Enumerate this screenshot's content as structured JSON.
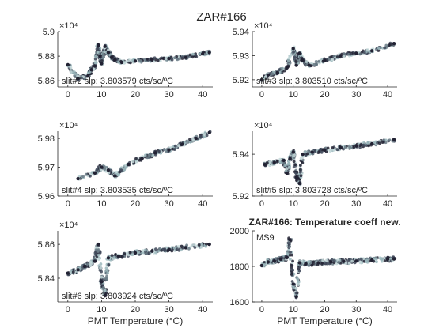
{
  "figure": {
    "title": "ZAR#166"
  },
  "colors": {
    "axis": "#262626",
    "points": [
      "#222233",
      "#3e4658",
      "#6a7b86",
      "#9cb8bd",
      "#c5d9da"
    ]
  },
  "chart_data": [
    {
      "type": "scatter",
      "title": "",
      "xlabel": "",
      "ylabel": "",
      "xlim": [
        -3,
        43
      ],
      "ylim": [
        5.855,
        5.9
      ],
      "xticks": [
        0,
        10,
        20,
        30,
        40
      ],
      "xticklabels": [
        "0",
        "10",
        "20",
        "30",
        "40"
      ],
      "yticks": [
        5.86,
        5.88,
        5.9
      ],
      "yticklabels": [
        "5.86",
        "5.88",
        "5.9"
      ],
      "exponent_label": "×10⁴",
      "annotation": "slit#2 slp: 3.803579 cts/sc/ºC",
      "approx_points": [
        [
          0,
          5.873
        ],
        [
          3,
          5.862
        ],
        [
          6,
          5.864
        ],
        [
          7,
          5.869
        ],
        [
          8,
          5.872
        ],
        [
          9,
          5.889
        ],
        [
          9.5,
          5.88
        ],
        [
          10,
          5.874
        ],
        [
          11,
          5.888
        ],
        [
          12,
          5.883
        ],
        [
          13,
          5.879
        ],
        [
          14,
          5.877
        ],
        [
          16,
          5.875
        ],
        [
          20,
          5.876
        ],
        [
          25,
          5.877
        ],
        [
          30,
          5.878
        ],
        [
          35,
          5.879
        ],
        [
          40,
          5.882
        ],
        [
          42,
          5.883
        ]
      ]
    },
    {
      "type": "scatter",
      "title": "",
      "xlabel": "",
      "ylabel": "",
      "xlim": [
        -3,
        43
      ],
      "ylim": [
        5.917,
        5.94
      ],
      "xticks": [
        0,
        10,
        20,
        30,
        40
      ],
      "xticklabels": [
        "0",
        "10",
        "20",
        "30",
        "40"
      ],
      "yticks": [
        5.92,
        5.93,
        5.94
      ],
      "yticklabels": [
        "5.92",
        "5.93",
        "5.94"
      ],
      "exponent_label": "×10⁴",
      "annotation": "slit#3 slp: 3.803510 cts/sc/ºC",
      "approx_points": [
        [
          0,
          5.92
        ],
        [
          2,
          5.922
        ],
        [
          5,
          5.923
        ],
        [
          8,
          5.925
        ],
        [
          10,
          5.933
        ],
        [
          11,
          5.926
        ],
        [
          12,
          5.931
        ],
        [
          13,
          5.928
        ],
        [
          15,
          5.926
        ],
        [
          20,
          5.928
        ],
        [
          25,
          5.93
        ],
        [
          30,
          5.931
        ],
        [
          35,
          5.932
        ],
        [
          42,
          5.935
        ]
      ]
    },
    {
      "type": "scatter",
      "title": "",
      "xlabel": "",
      "ylabel": "",
      "xlim": [
        -3,
        43
      ],
      "ylim": [
        5.96,
        5.9825
      ],
      "xticks": [
        0,
        10,
        20,
        30,
        40
      ],
      "xticklabels": [
        "0",
        "10",
        "20",
        "30",
        "40"
      ],
      "yticks": [
        5.96,
        5.97,
        5.98
      ],
      "yticklabels": [
        "5.96",
        "5.97",
        "5.98"
      ],
      "exponent_label": "×10⁴",
      "annotation": "slit#4 slp: 3.803535 cts/sc/ºC",
      "approx_points": [
        [
          3,
          5.966
        ],
        [
          8,
          5.968
        ],
        [
          10,
          5.97
        ],
        [
          12,
          5.969
        ],
        [
          14,
          5.967
        ],
        [
          18,
          5.971
        ],
        [
          22,
          5.973
        ],
        [
          26,
          5.975
        ],
        [
          30,
          5.976
        ],
        [
          34,
          5.978
        ],
        [
          38,
          5.98
        ],
        [
          42,
          5.982
        ]
      ]
    },
    {
      "type": "scatter",
      "title": "",
      "xlabel": "",
      "ylabel": "",
      "xlim": [
        -3,
        43
      ],
      "ylim": [
        5.92,
        5.951
      ],
      "xticks": [
        0,
        10,
        20,
        30,
        40
      ],
      "xticklabels": [
        "0",
        "10",
        "20",
        "30",
        "40"
      ],
      "yticks": [
        5.92,
        5.94
      ],
      "yticklabels": [
        "5.92",
        "5.94"
      ],
      "exponent_label": "×10⁴",
      "annotation": "slit#5 slp: 3.803728 cts/sc/ºC",
      "approx_points": [
        [
          1,
          5.935
        ],
        [
          4,
          5.936
        ],
        [
          7,
          5.937
        ],
        [
          8,
          5.931
        ],
        [
          9,
          5.938
        ],
        [
          10,
          5.941
        ],
        [
          11,
          5.929
        ],
        [
          12,
          5.926
        ],
        [
          13,
          5.94
        ],
        [
          16,
          5.941
        ],
        [
          20,
          5.942
        ],
        [
          25,
          5.943
        ],
        [
          30,
          5.944
        ],
        [
          35,
          5.945
        ],
        [
          42,
          5.947
        ]
      ]
    },
    {
      "type": "scatter",
      "title": "",
      "xlabel": "PMT Temperature (°C)",
      "ylabel": "",
      "xlim": [
        -3,
        43
      ],
      "ylim": [
        5.826,
        5.868
      ],
      "xticks": [
        0,
        10,
        20,
        30,
        40
      ],
      "xticklabels": [
        "0",
        "10",
        "20",
        "30",
        "40"
      ],
      "yticks": [
        5.84,
        5.86
      ],
      "yticklabels": [
        "5.84",
        "5.86"
      ],
      "exponent_label": "×10⁴",
      "annotation": "slit#6 slp: 3.803924 cts/sc/ºC",
      "approx_points": [
        [
          0,
          5.843
        ],
        [
          3,
          5.845
        ],
        [
          5,
          5.847
        ],
        [
          8,
          5.85
        ],
        [
          9,
          5.86
        ],
        [
          10,
          5.838
        ],
        [
          11,
          5.83
        ],
        [
          12,
          5.852
        ],
        [
          15,
          5.853
        ],
        [
          20,
          5.855
        ],
        [
          25,
          5.856
        ],
        [
          30,
          5.857
        ],
        [
          35,
          5.858
        ],
        [
          42,
          5.86
        ]
      ]
    },
    {
      "type": "scatter",
      "title": "ZAR#166: Temperature coeff new.",
      "xlabel": "PMT Temperature (°C)",
      "ylabel": "",
      "xlim": [
        -3,
        43
      ],
      "ylim": [
        1600,
        2000
      ],
      "xticks": [
        0,
        10,
        20,
        30,
        40
      ],
      "xticklabels": [
        "0",
        "10",
        "20",
        "30",
        "40"
      ],
      "yticks": [
        1600,
        1800,
        2000
      ],
      "yticklabels": [
        "1600",
        "1800",
        "2000"
      ],
      "exponent_label": "",
      "annotation": "MS9",
      "approx_points": [
        [
          0,
          1805
        ],
        [
          2,
          1825
        ],
        [
          4,
          1830
        ],
        [
          6,
          1840
        ],
        [
          8,
          1850
        ],
        [
          9,
          1950
        ],
        [
          10,
          1700
        ],
        [
          11,
          1630
        ],
        [
          12,
          1820
        ],
        [
          14,
          1815
        ],
        [
          18,
          1820
        ],
        [
          22,
          1825
        ],
        [
          26,
          1828
        ],
        [
          30,
          1830
        ],
        [
          35,
          1835
        ],
        [
          40,
          1840
        ],
        [
          42,
          1842
        ]
      ]
    }
  ]
}
